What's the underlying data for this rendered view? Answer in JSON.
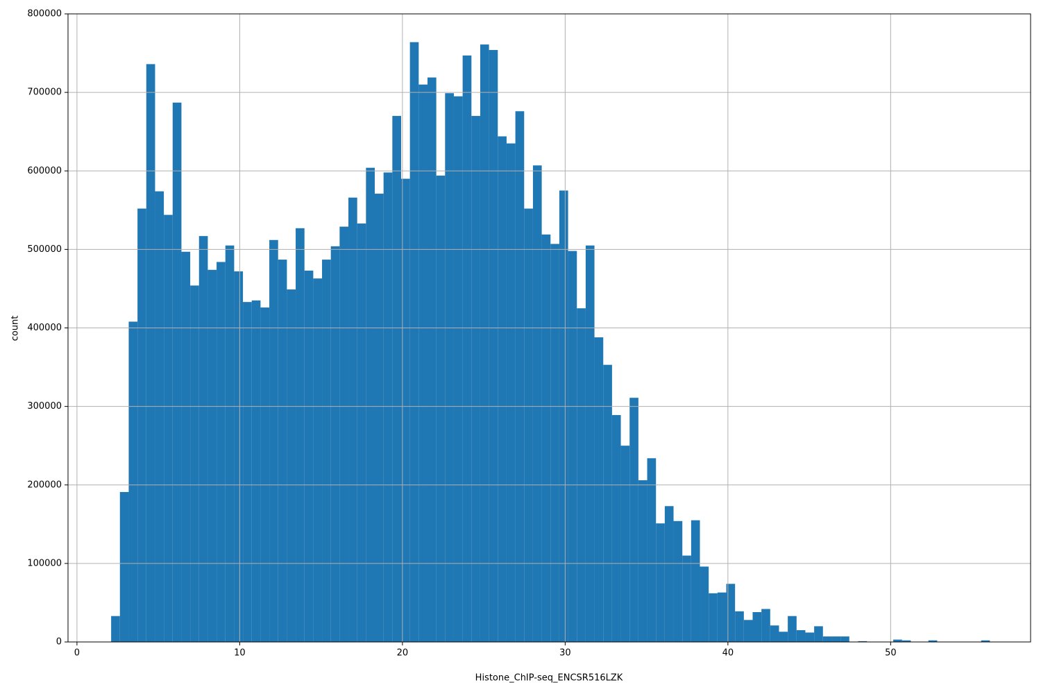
{
  "chart_data": {
    "type": "histogram",
    "xlabel": "Histone_ChIP-seq_ENCSR516LZK",
    "ylabel": "count",
    "color": "#1f77b4",
    "grid": true,
    "xlim": [
      -0.55,
      58.6
    ],
    "ylim": [
      0,
      800000
    ],
    "xticks": [
      0,
      10,
      20,
      30,
      40,
      50
    ],
    "yticks": [
      0,
      100000,
      200000,
      300000,
      400000,
      500000,
      600000,
      700000,
      800000
    ],
    "bins": [
      2.1,
      2.64,
      3.18,
      3.72,
      4.26,
      4.8,
      5.34,
      5.88,
      6.42,
      6.96,
      7.5,
      8.04,
      8.58,
      9.12,
      9.66,
      10.2,
      10.74,
      11.28,
      11.82,
      12.36,
      12.9,
      13.44,
      13.98,
      14.52,
      15.06,
      15.6,
      16.14,
      16.68,
      17.22,
      17.76,
      18.3,
      18.84,
      19.38,
      19.92,
      20.46,
      21.0,
      21.54,
      22.08,
      22.62,
      23.16,
      23.7,
      24.24,
      24.78,
      25.32,
      25.86,
      26.4,
      26.94,
      27.48,
      28.02,
      28.56,
      29.1,
      29.64,
      30.18,
      30.72,
      31.26,
      31.8,
      32.34,
      32.88,
      33.42,
      33.96,
      34.5,
      35.04,
      35.58,
      36.12,
      36.66,
      37.2,
      37.74,
      38.28,
      38.82,
      39.36,
      39.9,
      40.44,
      40.98,
      41.52,
      42.06,
      42.6,
      43.14,
      43.68,
      44.22,
      44.76,
      45.3,
      45.84,
      46.38,
      46.92,
      47.46,
      48.0,
      48.54,
      49.08,
      49.62,
      50.16,
      50.7,
      51.24,
      51.78,
      52.32,
      52.86,
      53.4,
      53.94,
      54.48,
      55.02,
      55.56,
      56.1
    ],
    "values": [
      33000,
      191000,
      408000,
      552000,
      736000,
      574000,
      544000,
      687000,
      497000,
      454000,
      517000,
      474000,
      484000,
      505000,
      472000,
      433000,
      435000,
      426000,
      512000,
      487000,
      449000,
      527000,
      473000,
      463000,
      487000,
      504000,
      529000,
      566000,
      533000,
      604000,
      571000,
      598000,
      670000,
      590000,
      764000,
      710000,
      719000,
      594000,
      699000,
      695000,
      747000,
      670000,
      761000,
      754000,
      644000,
      635000,
      676000,
      552000,
      607000,
      519000,
      507000,
      575000,
      498000,
      425000,
      505000,
      388000,
      353000,
      289000,
      250000,
      311000,
      206000,
      234000,
      151000,
      173000,
      154000,
      110000,
      155000,
      96000,
      62000,
      63000,
      74000,
      39000,
      28000,
      38000,
      42000,
      21000,
      13000,
      33000,
      15000,
      12000,
      20000,
      7000,
      7000,
      7000,
      0,
      1000,
      0,
      0,
      0,
      3000,
      2000,
      0,
      0,
      2000,
      0,
      0,
      0,
      0,
      0,
      2000
    ]
  }
}
